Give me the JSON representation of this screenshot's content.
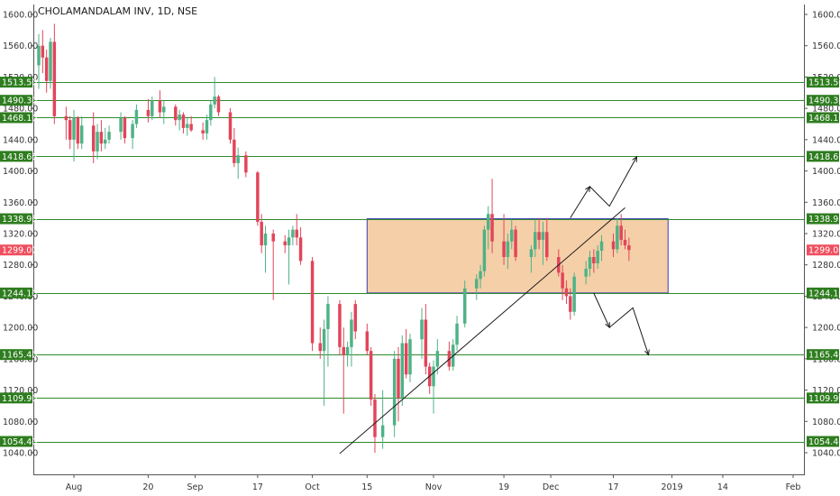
{
  "chart_data": {
    "type": "candlestick",
    "title": "CHOLAMANDALAM INV, 1D, NSE",
    "ylim": [
      1030,
      1610
    ],
    "y_ticks": [
      1040,
      1080,
      1120,
      1160,
      1200,
      1240,
      1280,
      1320,
      1360,
      1400,
      1440,
      1480,
      1520,
      1560,
      1600
    ],
    "y_tick_labels": [
      "1040.00",
      "1080.00",
      "1120.00",
      "1160.00",
      "1200.00",
      "1240.00",
      "1280.00",
      "1320.00",
      "1360.00",
      "1400.00",
      "1440.00",
      "1480.00",
      "1520.00",
      "1560.00",
      "1600.00"
    ],
    "x_start": "2018-07-23",
    "x_end": "2019-02-01",
    "x_ticks": [
      {
        "date": "2018-08-01",
        "label": "Aug"
      },
      {
        "date": "2018-08-20",
        "label": "20"
      },
      {
        "date": "2018-09-01",
        "label": "Sep"
      },
      {
        "date": "2018-09-17",
        "label": "17"
      },
      {
        "date": "2018-10-01",
        "label": "Oct"
      },
      {
        "date": "2018-10-15",
        "label": "15"
      },
      {
        "date": "2018-11-01",
        "label": "Nov"
      },
      {
        "date": "2018-11-19",
        "label": "19"
      },
      {
        "date": "2018-12-01",
        "label": "Dec"
      },
      {
        "date": "2018-12-17",
        "label": "17"
      },
      {
        "date": "2019-01-01",
        "label": "2019"
      },
      {
        "date": "2019-01-14",
        "label": "14"
      },
      {
        "date": "2019-02-01",
        "label": "Feb"
      }
    ],
    "levels": [
      {
        "price": 1513.5,
        "label": "1513.50"
      },
      {
        "price": 1490.3,
        "label": "1490.30"
      },
      {
        "price": 1468.1,
        "label": "1468.10"
      },
      {
        "price": 1418.65,
        "label": "1418.65"
      },
      {
        "price": 1338.95,
        "label": "1338.95"
      },
      {
        "price": 1244.1,
        "label": "1244.10"
      },
      {
        "price": 1165.4,
        "label": "1165.40"
      },
      {
        "price": 1109.9,
        "label": "1109.90"
      },
      {
        "price": 1054.4,
        "label": "1054.40"
      }
    ],
    "last_price": {
      "price": 1299.0,
      "label": "1299.00"
    },
    "zone": {
      "x0": "2018-10-15",
      "x1": "2018-12-31",
      "y_low": 1244.1,
      "y_high": 1338.95
    },
    "trendline": {
      "x0": "2018-10-08",
      "y0": 1039,
      "x1": "2018-12-20",
      "y1": 1353
    },
    "arrow_up_path": [
      {
        "x": "2018-12-06",
        "y": 1340
      },
      {
        "x": "2018-12-11",
        "y": 1380
      },
      {
        "x": "2018-12-16",
        "y": 1355
      },
      {
        "x": "2018-12-23",
        "y": 1418
      }
    ],
    "arrow_down_path": [
      {
        "x": "2018-12-12",
        "y": 1244
      },
      {
        "x": "2018-12-16",
        "y": 1200
      },
      {
        "x": "2018-12-22",
        "y": 1225
      },
      {
        "x": "2018-12-26",
        "y": 1165
      }
    ],
    "candles": [
      {
        "d": "2018-07-23",
        "o": 1535,
        "h": 1575,
        "l": 1505,
        "c": 1560
      },
      {
        "d": "2018-07-24",
        "o": 1560,
        "h": 1580,
        "l": 1525,
        "c": 1545
      },
      {
        "d": "2018-07-25",
        "o": 1545,
        "h": 1555,
        "l": 1500,
        "c": 1515
      },
      {
        "d": "2018-07-26",
        "o": 1515,
        "h": 1570,
        "l": 1505,
        "c": 1565
      },
      {
        "d": "2018-07-27",
        "o": 1565,
        "h": 1588,
        "l": 1460,
        "c": 1470
      },
      {
        "d": "2018-07-30",
        "o": 1470,
        "h": 1482,
        "l": 1440,
        "c": 1465
      },
      {
        "d": "2018-07-31",
        "o": 1465,
        "h": 1470,
        "l": 1428,
        "c": 1440
      },
      {
        "d": "2018-08-01",
        "o": 1440,
        "h": 1478,
        "l": 1412,
        "c": 1468
      },
      {
        "d": "2018-08-02",
        "o": 1468,
        "h": 1470,
        "l": 1428,
        "c": 1435
      },
      {
        "d": "2018-08-03",
        "o": 1435,
        "h": 1470,
        "l": 1428,
        "c": 1458
      },
      {
        "d": "2018-08-06",
        "o": 1458,
        "h": 1475,
        "l": 1410,
        "c": 1425
      },
      {
        "d": "2018-08-07",
        "o": 1425,
        "h": 1460,
        "l": 1415,
        "c": 1450
      },
      {
        "d": "2018-08-08",
        "o": 1450,
        "h": 1465,
        "l": 1425,
        "c": 1435
      },
      {
        "d": "2018-08-09",
        "o": 1435,
        "h": 1455,
        "l": 1428,
        "c": 1440
      },
      {
        "d": "2018-08-10",
        "o": 1440,
        "h": 1458,
        "l": 1435,
        "c": 1450
      },
      {
        "d": "2018-08-13",
        "o": 1450,
        "h": 1475,
        "l": 1440,
        "c": 1468
      },
      {
        "d": "2018-08-14",
        "o": 1468,
        "h": 1470,
        "l": 1435,
        "c": 1442
      },
      {
        "d": "2018-08-16",
        "o": 1442,
        "h": 1465,
        "l": 1428,
        "c": 1460
      },
      {
        "d": "2018-08-17",
        "o": 1460,
        "h": 1485,
        "l": 1455,
        "c": 1478
      },
      {
        "d": "2018-08-20",
        "o": 1478,
        "h": 1492,
        "l": 1462,
        "c": 1470
      },
      {
        "d": "2018-08-21",
        "o": 1470,
        "h": 1495,
        "l": 1465,
        "c": 1490
      },
      {
        "d": "2018-08-23",
        "o": 1490,
        "h": 1503,
        "l": 1468,
        "c": 1475
      },
      {
        "d": "2018-08-24",
        "o": 1475,
        "h": 1490,
        "l": 1460,
        "c": 1482
      },
      {
        "d": "2018-08-27",
        "o": 1482,
        "h": 1485,
        "l": 1458,
        "c": 1465
      },
      {
        "d": "2018-08-28",
        "o": 1465,
        "h": 1478,
        "l": 1452,
        "c": 1472
      },
      {
        "d": "2018-08-29",
        "o": 1472,
        "h": 1475,
        "l": 1448,
        "c": 1455
      },
      {
        "d": "2018-08-30",
        "o": 1455,
        "h": 1468,
        "l": 1445,
        "c": 1460
      },
      {
        "d": "2018-08-31",
        "o": 1460,
        "h": 1470,
        "l": 1450,
        "c": 1452
      },
      {
        "d": "2018-09-03",
        "o": 1452,
        "h": 1462,
        "l": 1440,
        "c": 1448
      },
      {
        "d": "2018-09-04",
        "o": 1448,
        "h": 1472,
        "l": 1440,
        "c": 1465
      },
      {
        "d": "2018-09-05",
        "o": 1465,
        "h": 1490,
        "l": 1458,
        "c": 1485
      },
      {
        "d": "2018-09-06",
        "o": 1485,
        "h": 1520,
        "l": 1480,
        "c": 1495
      },
      {
        "d": "2018-09-07",
        "o": 1495,
        "h": 1497,
        "l": 1470,
        "c": 1475
      },
      {
        "d": "2018-09-10",
        "o": 1475,
        "h": 1480,
        "l": 1435,
        "c": 1440
      },
      {
        "d": "2018-09-11",
        "o": 1440,
        "h": 1455,
        "l": 1405,
        "c": 1410
      },
      {
        "d": "2018-09-12",
        "o": 1410,
        "h": 1430,
        "l": 1390,
        "c": 1420
      },
      {
        "d": "2018-09-14",
        "o": 1420,
        "h": 1425,
        "l": 1392,
        "c": 1398
      },
      {
        "d": "2018-09-17",
        "o": 1398,
        "h": 1400,
        "l": 1330,
        "c": 1335
      },
      {
        "d": "2018-09-18",
        "o": 1335,
        "h": 1345,
        "l": 1295,
        "c": 1305
      },
      {
        "d": "2018-09-19",
        "o": 1305,
        "h": 1330,
        "l": 1270,
        "c": 1320
      },
      {
        "d": "2018-09-21",
        "o": 1320,
        "h": 1325,
        "l": 1235,
        "c": 1310
      },
      {
        "d": "2018-09-24",
        "o": 1310,
        "h": 1318,
        "l": 1295,
        "c": 1305
      },
      {
        "d": "2018-09-25",
        "o": 1305,
        "h": 1325,
        "l": 1255,
        "c": 1315
      },
      {
        "d": "2018-09-26",
        "o": 1315,
        "h": 1330,
        "l": 1305,
        "c": 1325
      },
      {
        "d": "2018-09-27",
        "o": 1325,
        "h": 1345,
        "l": 1305,
        "c": 1315
      },
      {
        "d": "2018-09-28",
        "o": 1315,
        "h": 1328,
        "l": 1280,
        "c": 1285
      },
      {
        "d": "2018-10-01",
        "o": 1285,
        "h": 1290,
        "l": 1170,
        "c": 1180
      },
      {
        "d": "2018-10-03",
        "o": 1180,
        "h": 1200,
        "l": 1160,
        "c": 1170
      },
      {
        "d": "2018-10-04",
        "o": 1170,
        "h": 1210,
        "l": 1100,
        "c": 1198
      },
      {
        "d": "2018-10-05",
        "o": 1198,
        "h": 1240,
        "l": 1150,
        "c": 1230
      },
      {
        "d": "2018-10-08",
        "o": 1230,
        "h": 1235,
        "l": 1165,
        "c": 1175
      },
      {
        "d": "2018-10-09",
        "o": 1175,
        "h": 1200,
        "l": 1090,
        "c": 1165
      },
      {
        "d": "2018-10-10",
        "o": 1165,
        "h": 1182,
        "l": 1150,
        "c": 1175
      },
      {
        "d": "2018-10-11",
        "o": 1175,
        "h": 1220,
        "l": 1150,
        "c": 1210
      },
      {
        "d": "2018-10-12",
        "o": 1230,
        "h": 1235,
        "l": 1185,
        "c": 1195
      },
      {
        "d": "2018-10-15",
        "o": 1195,
        "h": 1205,
        "l": 1165,
        "c": 1170
      },
      {
        "d": "2018-10-16",
        "o": 1170,
        "h": 1175,
        "l": 1100,
        "c": 1108
      },
      {
        "d": "2018-10-17",
        "o": 1108,
        "h": 1115,
        "l": 1040,
        "c": 1060
      },
      {
        "d": "2018-10-19",
        "o": 1060,
        "h": 1120,
        "l": 1045,
        "c": 1075
      },
      {
        "d": "2018-10-22",
        "o": 1075,
        "h": 1170,
        "l": 1060,
        "c": 1160
      },
      {
        "d": "2018-10-23",
        "o": 1160,
        "h": 1175,
        "l": 1080,
        "c": 1110
      },
      {
        "d": "2018-10-24",
        "o": 1110,
        "h": 1190,
        "l": 1100,
        "c": 1180
      },
      {
        "d": "2018-10-25",
        "o": 1180,
        "h": 1198,
        "l": 1135,
        "c": 1140
      },
      {
        "d": "2018-10-26",
        "o": 1140,
        "h": 1192,
        "l": 1130,
        "c": 1185
      },
      {
        "d": "2018-10-29",
        "o": 1185,
        "h": 1225,
        "l": 1160,
        "c": 1210
      },
      {
        "d": "2018-10-30",
        "o": 1210,
        "h": 1230,
        "l": 1140,
        "c": 1150
      },
      {
        "d": "2018-10-31",
        "o": 1150,
        "h": 1155,
        "l": 1115,
        "c": 1125
      },
      {
        "d": "2018-11-01",
        "o": 1125,
        "h": 1158,
        "l": 1090,
        "c": 1150
      },
      {
        "d": "2018-11-02",
        "o": 1150,
        "h": 1185,
        "l": 1140,
        "c": 1170
      },
      {
        "d": "2018-11-05",
        "o": 1170,
        "h": 1182,
        "l": 1145,
        "c": 1150
      },
      {
        "d": "2018-11-06",
        "o": 1150,
        "h": 1185,
        "l": 1145,
        "c": 1178
      },
      {
        "d": "2018-11-07",
        "o": 1178,
        "h": 1215,
        "l": 1170,
        "c": 1205
      },
      {
        "d": "2018-11-09",
        "o": 1205,
        "h": 1260,
        "l": 1200,
        "c": 1250
      },
      {
        "d": "2018-11-12",
        "o": 1250,
        "h": 1268,
        "l": 1235,
        "c": 1262
      },
      {
        "d": "2018-11-13",
        "o": 1262,
        "h": 1280,
        "l": 1250,
        "c": 1272
      },
      {
        "d": "2018-11-14",
        "o": 1272,
        "h": 1330,
        "l": 1265,
        "c": 1325
      },
      {
        "d": "2018-11-15",
        "o": 1325,
        "h": 1355,
        "l": 1300,
        "c": 1345
      },
      {
        "d": "2018-11-16",
        "o": 1345,
        "h": 1390,
        "l": 1295,
        "c": 1310
      },
      {
        "d": "2018-11-19",
        "o": 1310,
        "h": 1345,
        "l": 1280,
        "c": 1290
      },
      {
        "d": "2018-11-20",
        "o": 1290,
        "h": 1320,
        "l": 1275,
        "c": 1310
      },
      {
        "d": "2018-11-21",
        "o": 1310,
        "h": 1338,
        "l": 1300,
        "c": 1325
      },
      {
        "d": "2018-11-22",
        "o": 1325,
        "h": 1330,
        "l": 1285,
        "c": 1290
      },
      {
        "d": "2018-11-26",
        "o": 1290,
        "h": 1305,
        "l": 1270,
        "c": 1300
      },
      {
        "d": "2018-11-27",
        "o": 1300,
        "h": 1338,
        "l": 1290,
        "c": 1322
      },
      {
        "d": "2018-11-28",
        "o": 1322,
        "h": 1340,
        "l": 1300,
        "c": 1312
      },
      {
        "d": "2018-11-29",
        "o": 1312,
        "h": 1335,
        "l": 1280,
        "c": 1322
      },
      {
        "d": "2018-11-30",
        "o": 1322,
        "h": 1340,
        "l": 1285,
        "c": 1290
      },
      {
        "d": "2018-12-03",
        "o": 1290,
        "h": 1300,
        "l": 1265,
        "c": 1270
      },
      {
        "d": "2018-12-04",
        "o": 1270,
        "h": 1280,
        "l": 1235,
        "c": 1250
      },
      {
        "d": "2018-12-05",
        "o": 1250,
        "h": 1260,
        "l": 1230,
        "c": 1240
      },
      {
        "d": "2018-12-06",
        "o": 1240,
        "h": 1250,
        "l": 1210,
        "c": 1220
      },
      {
        "d": "2018-12-07",
        "o": 1220,
        "h": 1270,
        "l": 1215,
        "c": 1265
      },
      {
        "d": "2018-12-10",
        "o": 1265,
        "h": 1285,
        "l": 1255,
        "c": 1275
      },
      {
        "d": "2018-12-11",
        "o": 1275,
        "h": 1298,
        "l": 1265,
        "c": 1290
      },
      {
        "d": "2018-12-12",
        "o": 1290,
        "h": 1300,
        "l": 1270,
        "c": 1282
      },
      {
        "d": "2018-12-13",
        "o": 1282,
        "h": 1305,
        "l": 1275,
        "c": 1298
      },
      {
        "d": "2018-12-14",
        "o": 1298,
        "h": 1318,
        "l": 1285,
        "c": 1310
      },
      {
        "d": "2018-12-17",
        "o": 1310,
        "h": 1320,
        "l": 1290,
        "c": 1300
      },
      {
        "d": "2018-12-18",
        "o": 1300,
        "h": 1340,
        "l": 1295,
        "c": 1330
      },
      {
        "d": "2018-12-19",
        "o": 1330,
        "h": 1345,
        "l": 1305,
        "c": 1312
      },
      {
        "d": "2018-12-20",
        "o": 1312,
        "h": 1325,
        "l": 1300,
        "c": 1305
      },
      {
        "d": "2018-12-21",
        "o": 1305,
        "h": 1315,
        "l": 1285,
        "c": 1299
      }
    ]
  }
}
